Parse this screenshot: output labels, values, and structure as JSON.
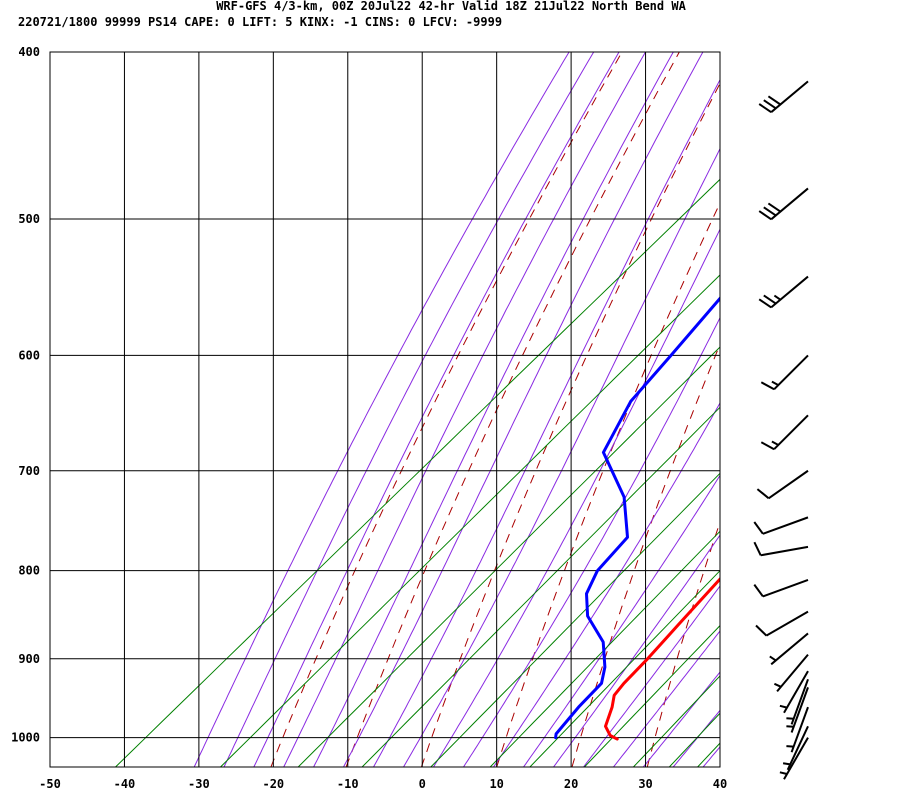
{
  "header": {
    "line1": "WRF-GFS 4/3-km, 00Z 20Jul22 42-hr Valid 18Z 21Jul22 North Bend WA",
    "line2": "220721/1800 99999  PS14    CAPE:     0 LIFT:     5 KINX:    -1 CINS:     0 LFCV: -9999"
  },
  "chart_data": {
    "type": "line",
    "title": "WRF-GFS 4/3-km, 00Z 20Jul22 42-hr Valid 18Z 21Jul22 North Bend WA",
    "subtitle": "220721/1800 99999  PS14    CAPE:     0 LIFT:     5 KINX:    -1 CINS:     0 LFCV: -9999",
    "xlabel": "",
    "ylabel": "",
    "x_range": [
      -50,
      40
    ],
    "x_ticks": [
      -50,
      -40,
      -30,
      -20,
      -10,
      0,
      10,
      20,
      30,
      40
    ],
    "y_range_hpa": [
      1040,
      400
    ],
    "y_scale": "log",
    "y_ticks": [
      400,
      500,
      600,
      700,
      800,
      900,
      1000
    ],
    "grid": true,
    "colors": {
      "temperature": "#ff0000",
      "dewpoint": "#0000ff",
      "dry_adiabat": "#aa0000",
      "moist_adiabat": "#8a2be2",
      "mixing_ratio": "#008000",
      "grid": "#000000"
    },
    "series": [
      {
        "key": "temperature",
        "pressure": [
          1002,
          997,
          985,
          960,
          945,
          930,
          900,
          860,
          820,
          800,
          775,
          740,
          700,
          670,
          640,
          600,
          550,
          500,
          460,
          416
        ],
        "values": [
          22,
          20.5,
          18.5,
          16.5,
          15,
          14.5,
          14,
          13,
          12,
          11.5,
          10.5,
          9,
          6.5,
          4,
          1.5,
          -2,
          -6.5,
          -10.5,
          -14,
          -21
        ]
      },
      {
        "key": "dewpoint",
        "pressure": [
          1000,
          995,
          960,
          930,
          910,
          880,
          850,
          825,
          800,
          765,
          725,
          683,
          638,
          600,
          535,
          500,
          470,
          416
        ],
        "values": [
          13.5,
          13,
          12,
          11.5,
          9.5,
          5.5,
          -0.5,
          -4,
          -6,
          -7,
          -13.5,
          -23,
          -27,
          -28.5,
          -31.5,
          -31.5,
          -32,
          -33
        ]
      }
    ],
    "wind_barbs": [
      {
        "pressure": 416,
        "dir": 230,
        "speed_kt": 30
      },
      {
        "pressure": 480,
        "dir": 230,
        "speed_kt": 30
      },
      {
        "pressure": 540,
        "dir": 230,
        "speed_kt": 25
      },
      {
        "pressure": 600,
        "dir": 225,
        "speed_kt": 15
      },
      {
        "pressure": 650,
        "dir": 225,
        "speed_kt": 15
      },
      {
        "pressure": 700,
        "dir": 235,
        "speed_kt": 10
      },
      {
        "pressure": 745,
        "dir": 250,
        "speed_kt": 10
      },
      {
        "pressure": 775,
        "dir": 260,
        "speed_kt": 10
      },
      {
        "pressure": 810,
        "dir": 250,
        "speed_kt": 10
      },
      {
        "pressure": 845,
        "dir": 240,
        "speed_kt": 10
      },
      {
        "pressure": 870,
        "dir": 230,
        "speed_kt": 5
      },
      {
        "pressure": 895,
        "dir": 220,
        "speed_kt": 5
      },
      {
        "pressure": 915,
        "dir": 210,
        "speed_kt": 5
      },
      {
        "pressure": 925,
        "dir": 200,
        "speed_kt": 5
      },
      {
        "pressure": 935,
        "dir": 200,
        "speed_kt": 5
      },
      {
        "pressure": 960,
        "dir": 200,
        "speed_kt": 5
      },
      {
        "pressure": 985,
        "dir": 205,
        "speed_kt": 5
      },
      {
        "pressure": 1000,
        "dir": 210,
        "speed_kt": 5
      }
    ]
  }
}
